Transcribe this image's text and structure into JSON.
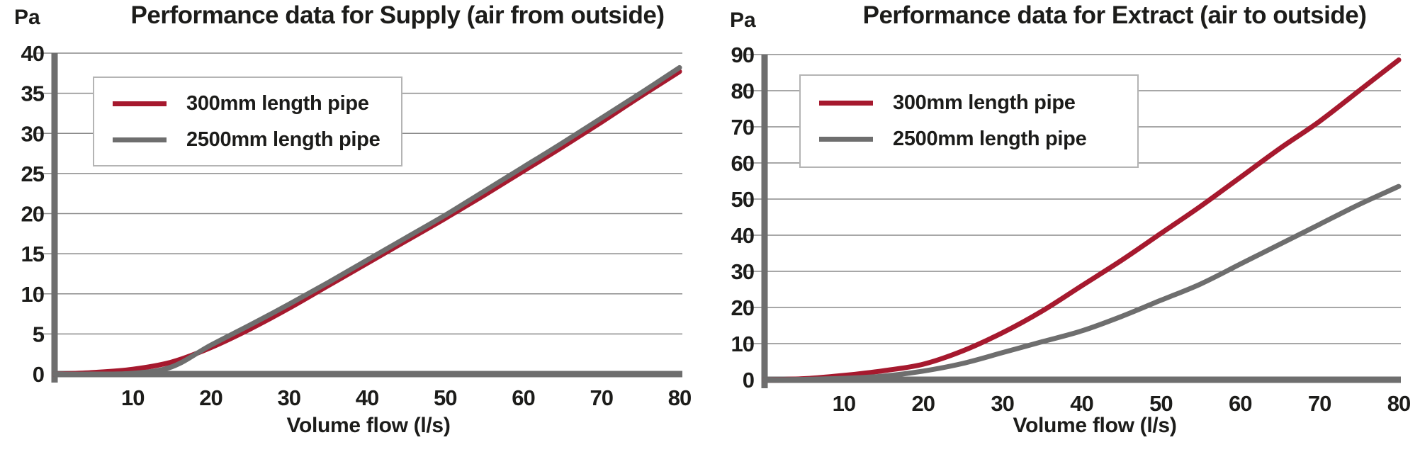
{
  "style": {
    "background": "#ffffff",
    "text_color": "#1c1c1a",
    "accent_red": "#a6192e",
    "curve_gray": "#6e6e6e",
    "axis_color": "#6e6e6e",
    "grid_color": "#8a8a8a",
    "legend_border": "#b4b4b4"
  },
  "chart_data": [
    {
      "type": "line",
      "title": "Performance data for Supply (air from outside)",
      "y_unit": "Pa",
      "xlabel": "Volume flow (l/s)",
      "ylim": [
        0,
        40
      ],
      "ytick_step": 5,
      "xlim": [
        0,
        80
      ],
      "xticks": [
        10,
        20,
        30,
        40,
        50,
        60,
        70,
        80
      ],
      "grid": "horizontal",
      "legend_position": "top-left",
      "x": [
        0,
        5,
        10,
        15,
        20,
        25,
        30,
        35,
        40,
        45,
        50,
        55,
        60,
        65,
        70,
        75,
        80
      ],
      "series": [
        {
          "name": "300mm length pipe",
          "color": "#a6192e",
          "values": [
            0,
            0.2,
            0.6,
            1.5,
            3.3,
            5.6,
            8.2,
            11.0,
            13.8,
            16.6,
            19.4,
            22.3,
            25.3,
            28.3,
            31.4,
            34.6,
            37.7
          ]
        },
        {
          "name": "2500mm length pipe",
          "color": "#6e6e6e",
          "values": [
            0,
            0,
            0.1,
            0.9,
            3.6,
            6.1,
            8.7,
            11.4,
            14.2,
            17.0,
            19.8,
            22.8,
            25.8,
            28.8,
            31.9,
            35.0,
            38.2
          ]
        }
      ]
    },
    {
      "type": "line",
      "title": "Performance data for Extract (air to outside)",
      "y_unit": "Pa",
      "xlabel": "Volume flow (l/s)",
      "ylim": [
        0,
        90
      ],
      "ytick_step": 10,
      "xlim": [
        0,
        80
      ],
      "xticks": [
        10,
        20,
        30,
        40,
        50,
        60,
        70,
        80
      ],
      "grid": "horizontal",
      "legend_position": "top-left",
      "x": [
        0,
        5,
        10,
        15,
        20,
        25,
        30,
        35,
        40,
        45,
        50,
        55,
        60,
        65,
        70,
        75,
        80
      ],
      "series": [
        {
          "name": "300mm length pipe",
          "color": "#a6192e",
          "values": [
            0,
            0.3,
            1.2,
            2.5,
            4.3,
            8,
            13,
            19,
            26,
            33,
            40.5,
            48,
            56,
            64,
            71.5,
            80,
            88.5
          ]
        },
        {
          "name": "2500mm length pipe",
          "color": "#6e6e6e",
          "values": [
            0,
            0.1,
            0.4,
            1.0,
            2.4,
            4.5,
            7.5,
            10.5,
            13.5,
            17.5,
            22,
            26.5,
            32,
            37.5,
            43,
            48.5,
            53.5
          ]
        }
      ]
    }
  ]
}
